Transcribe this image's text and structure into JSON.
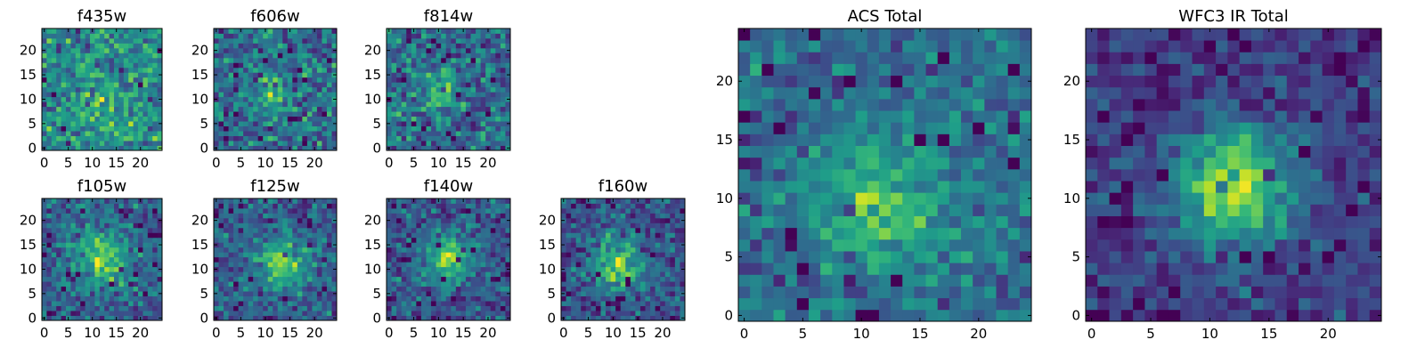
{
  "figure": {
    "colormap": "viridis",
    "background": "#ffffff"
  },
  "chart_data": [
    {
      "type": "heatmap",
      "title": "f435w",
      "xticks": [
        0,
        5,
        10,
        15,
        20
      ],
      "yticks": [
        0,
        5,
        10,
        15,
        20
      ],
      "xlim": [
        -0.5,
        24.5
      ],
      "ylim": [
        -0.5,
        24.5
      ],
      "grid_size": 25,
      "center": [
        12,
        9
      ],
      "peak_width": 4,
      "peak_strength": 0.15,
      "noise": 0.55,
      "seed": 11
    },
    {
      "type": "heatmap",
      "title": "f606w",
      "xticks": [
        0,
        5,
        10,
        15,
        20
      ],
      "yticks": [
        0,
        5,
        10,
        15,
        20
      ],
      "xlim": [
        -0.5,
        24.5
      ],
      "ylim": [
        -0.5,
        24.5
      ],
      "grid_size": 25,
      "center": [
        12,
        11
      ],
      "peak_width": 2.5,
      "peak_strength": 0.35,
      "noise": 0.55,
      "seed": 23
    },
    {
      "type": "heatmap",
      "title": "f814w",
      "xticks": [
        0,
        5,
        10,
        15,
        20
      ],
      "yticks": [
        0,
        5,
        10,
        15,
        20
      ],
      "xlim": [
        -0.5,
        24.5
      ],
      "ylim": [
        -0.5,
        24.5
      ],
      "grid_size": 25,
      "center": [
        10,
        12
      ],
      "peak_width": 2.5,
      "peak_strength": 0.35,
      "noise": 0.55,
      "seed": 37
    },
    {
      "type": "heatmap",
      "title": "f105w",
      "xticks": [
        0,
        5,
        10,
        15,
        20
      ],
      "yticks": [
        0,
        5,
        10,
        15,
        20
      ],
      "xlim": [
        -0.5,
        24.5
      ],
      "ylim": [
        -0.5,
        24.5
      ],
      "grid_size": 25,
      "center": [
        12,
        12
      ],
      "peak_width": 4,
      "peak_strength": 0.45,
      "noise": 0.45,
      "seed": 41
    },
    {
      "type": "heatmap",
      "title": "f125w",
      "xticks": [
        0,
        5,
        10,
        15,
        20
      ],
      "yticks": [
        0,
        5,
        10,
        15,
        20
      ],
      "xlim": [
        -0.5,
        24.5
      ],
      "ylim": [
        -0.5,
        24.5
      ],
      "grid_size": 25,
      "center": [
        13,
        11
      ],
      "peak_width": 3.5,
      "peak_strength": 0.45,
      "noise": 0.45,
      "seed": 53
    },
    {
      "type": "heatmap",
      "title": "f140w",
      "xticks": [
        0,
        5,
        10,
        15,
        20
      ],
      "yticks": [
        0,
        5,
        10,
        15,
        20
      ],
      "xlim": [
        -0.5,
        24.5
      ],
      "ylim": [
        -0.5,
        24.5
      ],
      "grid_size": 25,
      "center": [
        12,
        12
      ],
      "peak_width": 3.5,
      "peak_strength": 0.5,
      "noise": 0.45,
      "seed": 67
    },
    {
      "type": "heatmap",
      "title": "f160w",
      "xticks": [
        0,
        5,
        10,
        15,
        20
      ],
      "yticks": [
        0,
        5,
        10,
        15,
        20
      ],
      "xlim": [
        -0.5,
        24.5
      ],
      "ylim": [
        -0.5,
        24.5
      ],
      "grid_size": 25,
      "center": [
        11,
        11
      ],
      "peak_width": 3.5,
      "peak_strength": 0.55,
      "noise": 0.45,
      "seed": 71
    },
    {
      "type": "heatmap",
      "title": "ACS Total",
      "xticks": [
        0,
        5,
        10,
        15,
        20
      ],
      "yticks": [
        0,
        5,
        10,
        15,
        20
      ],
      "xlim": [
        -0.5,
        24.5
      ],
      "ylim": [
        -0.5,
        24.5
      ],
      "grid_size": 25,
      "center": [
        12,
        10
      ],
      "peak_width": 4,
      "peak_strength": 0.35,
      "noise": 0.4,
      "seed": 83
    },
    {
      "type": "heatmap",
      "title": "WFC3 IR Total",
      "xticks": [
        0,
        5,
        10,
        15,
        20
      ],
      "yticks": [
        0,
        5,
        10,
        15,
        20
      ],
      "xlim": [
        -0.5,
        24.5
      ],
      "ylim": [
        -0.5,
        24.5
      ],
      "grid_size": 25,
      "center": [
        12,
        11
      ],
      "peak_width": 3.5,
      "peak_strength": 0.7,
      "noise": 0.35,
      "seed": 97
    }
  ]
}
